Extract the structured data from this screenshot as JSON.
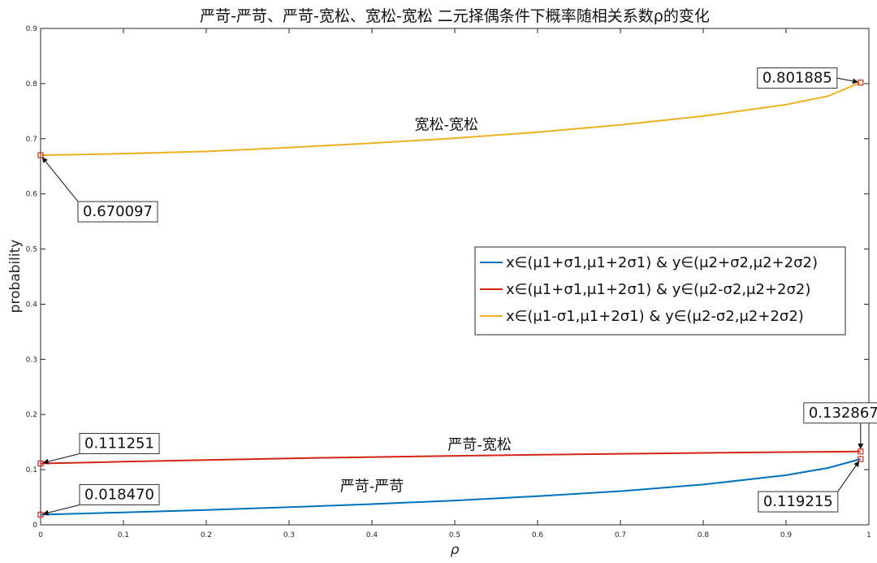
{
  "chart_data": {
    "type": "line",
    "title": "严苛-严苛、严苛-宽松、宽松-宽松 二元择偶条件下概率随相关系数ρ的变化",
    "xlabel": "ρ",
    "ylabel": "probability",
    "xlim": [
      0,
      1
    ],
    "ylim": [
      0,
      0.9
    ],
    "x_ticks": [
      "0",
      "0.1",
      "0.2",
      "0.3",
      "0.4",
      "0.5",
      "0.6",
      "0.7",
      "0.8",
      "0.9",
      "1"
    ],
    "y_ticks": [
      "0",
      "0.1",
      "0.2",
      "0.3",
      "0.4",
      "0.5",
      "0.6",
      "0.7",
      "0.8",
      "0.9"
    ],
    "grid": false,
    "legend_position": "center-right",
    "series": [
      {
        "name": "x∈(μ1+σ1,μ1+2σ1) & y∈(μ2+σ2,μ2+2σ2)",
        "color": "#0072BD",
        "curve_label": "严苛-严苛",
        "x": [
          0,
          0.1,
          0.2,
          0.3,
          0.4,
          0.5,
          0.6,
          0.7,
          0.8,
          0.9,
          0.95,
          0.99
        ],
        "values": [
          0.01847,
          0.0225,
          0.027,
          0.032,
          0.0375,
          0.044,
          0.052,
          0.061,
          0.073,
          0.09,
          0.103,
          0.119215
        ]
      },
      {
        "name": "x∈(μ1+σ1,μ1+2σ1) & y∈(μ2-σ2,μ2+2σ2)",
        "color": "#D62418",
        "curve_label": "严苛-宽松",
        "x": [
          0,
          0.1,
          0.2,
          0.3,
          0.4,
          0.5,
          0.6,
          0.7,
          0.8,
          0.9,
          0.99
        ],
        "values": [
          0.111251,
          0.1145,
          0.1175,
          0.1205,
          0.1228,
          0.125,
          0.127,
          0.1288,
          0.1303,
          0.1318,
          0.132867
        ]
      },
      {
        "name": "x∈(μ1-σ1,μ1+2σ1) & y∈(μ2-σ2,μ2+2σ2)",
        "color": "#EDB120",
        "curve_label": "宽松-宽松",
        "x": [
          0,
          0.1,
          0.2,
          0.3,
          0.4,
          0.5,
          0.6,
          0.7,
          0.8,
          0.9,
          0.95,
          0.99
        ],
        "values": [
          0.670097,
          0.673,
          0.677,
          0.684,
          0.692,
          0.701,
          0.712,
          0.725,
          0.741,
          0.762,
          0.777,
          0.801885
        ]
      }
    ],
    "annotations": [
      {
        "text": "0.670097",
        "x": 0,
        "y": 0.670097
      },
      {
        "text": "0.801885",
        "x": 0.99,
        "y": 0.801885
      },
      {
        "text": "0.111251",
        "x": 0,
        "y": 0.111251
      },
      {
        "text": "0.132867",
        "x": 0.99,
        "y": 0.132867
      },
      {
        "text": "0.018470",
        "x": 0,
        "y": 0.01847
      },
      {
        "text": "0.119215",
        "x": 0.99,
        "y": 0.119215
      }
    ]
  }
}
